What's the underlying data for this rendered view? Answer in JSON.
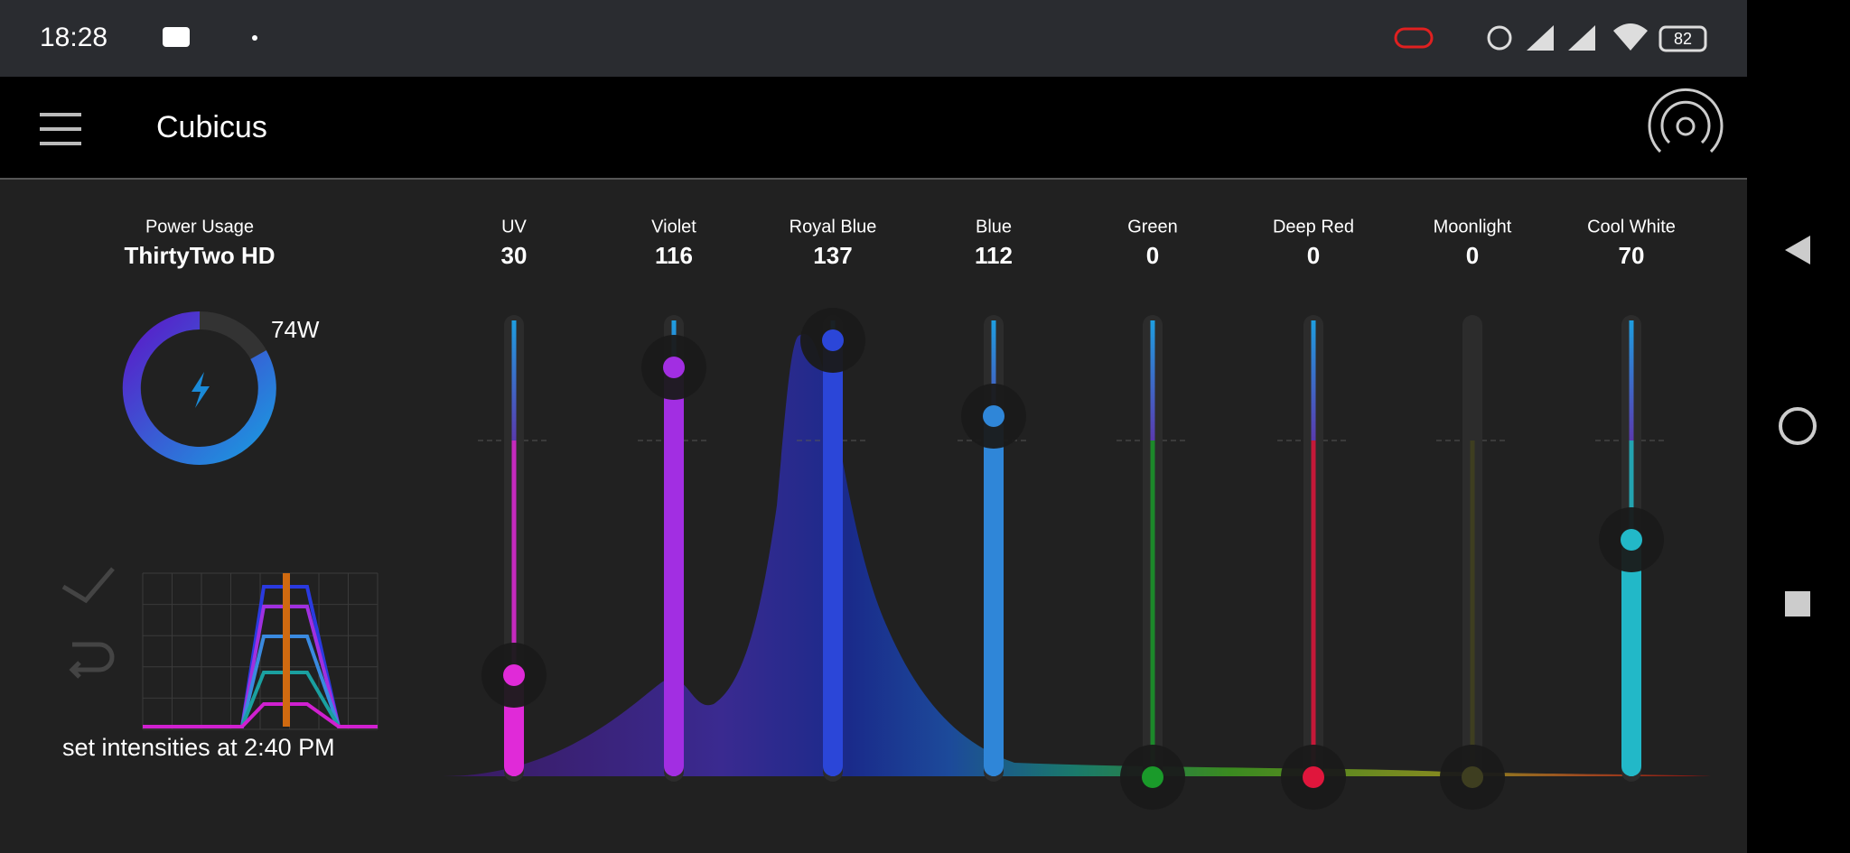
{
  "status_bar": {
    "time": "18:28",
    "battery": "82"
  },
  "app_bar": {
    "title": "Cubicus"
  },
  "power": {
    "label": "Power Usage",
    "device": "ThirtyTwo HD",
    "watts": "74W"
  },
  "schedule": {
    "text": "set intensities at 2:40 PM"
  },
  "channels": [
    {
      "name": "UV",
      "value": 30,
      "color": "#e02ad8"
    },
    {
      "name": "Violet",
      "value": 116,
      "color": "#a22ee2"
    },
    {
      "name": "Royal Blue",
      "value": 137,
      "color": "#2b46d8"
    },
    {
      "name": "Blue",
      "value": 112,
      "color": "#2f86d8"
    },
    {
      "name": "Green",
      "value": 0,
      "color": "#1a9a2a"
    },
    {
      "name": "Deep Red",
      "value": 0,
      "color": "#e0163c"
    },
    {
      "name": "Moonlight",
      "value": 0,
      "color": "#3e3e20"
    },
    {
      "name": "Cool White",
      "value": 70,
      "color": "#22b8c8"
    }
  ]
}
